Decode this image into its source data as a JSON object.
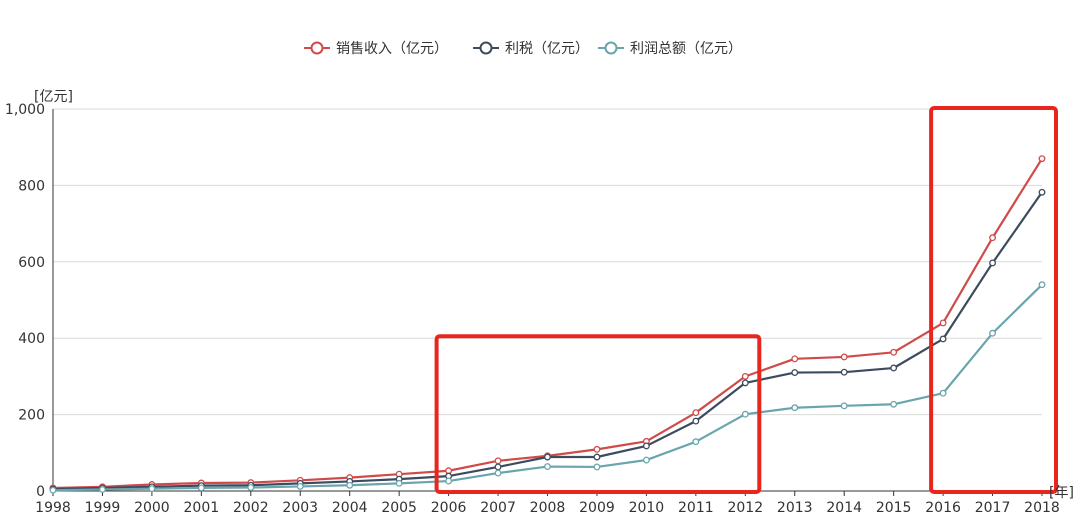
{
  "chart_data": {
    "type": "line",
    "xlabel": "[年]",
    "ylabel": "[亿元]",
    "ylim": [
      0,
      1000
    ],
    "y_ticks": [
      "0",
      "200",
      "400",
      "600",
      "800",
      "1,000"
    ],
    "categories": [
      "1998",
      "1999",
      "2000",
      "2001",
      "2002",
      "2003",
      "2004",
      "2005",
      "2006",
      "2007",
      "2008",
      "2009",
      "2010",
      "2011",
      "2012",
      "2013",
      "2014",
      "2015",
      "2016",
      "2017",
      "2018"
    ],
    "grid": true,
    "legend_position": "top-center",
    "series": [
      {
        "name": "销售收入（亿元）",
        "color": "#d14a4a",
        "values": [
          8,
          11,
          17,
          21,
          22,
          28,
          35,
          44,
          53,
          79,
          92,
          109,
          130,
          205,
          300,
          346,
          351,
          363,
          440,
          663,
          870
        ]
      },
      {
        "name": "利税（亿元）",
        "color": "#3c4c5e",
        "values": [
          5,
          8,
          11,
          14,
          15,
          20,
          25,
          31,
          39,
          63,
          89,
          89,
          118,
          183,
          283,
          310,
          311,
          322,
          398,
          597,
          782
        ]
      },
      {
        "name": "利润总额（亿元）",
        "color": "#6aa5ad",
        "values": [
          2,
          4,
          6,
          8,
          9,
          12,
          15,
          20,
          26,
          47,
          64,
          63,
          81,
          129,
          201,
          218,
          223,
          227,
          256,
          413,
          540
        ]
      }
    ],
    "highlight_boxes_color": "#e8261e",
    "highlight_ranges": [
      [
        "2006",
        "2012"
      ],
      [
        "2016",
        "2018"
      ]
    ]
  }
}
